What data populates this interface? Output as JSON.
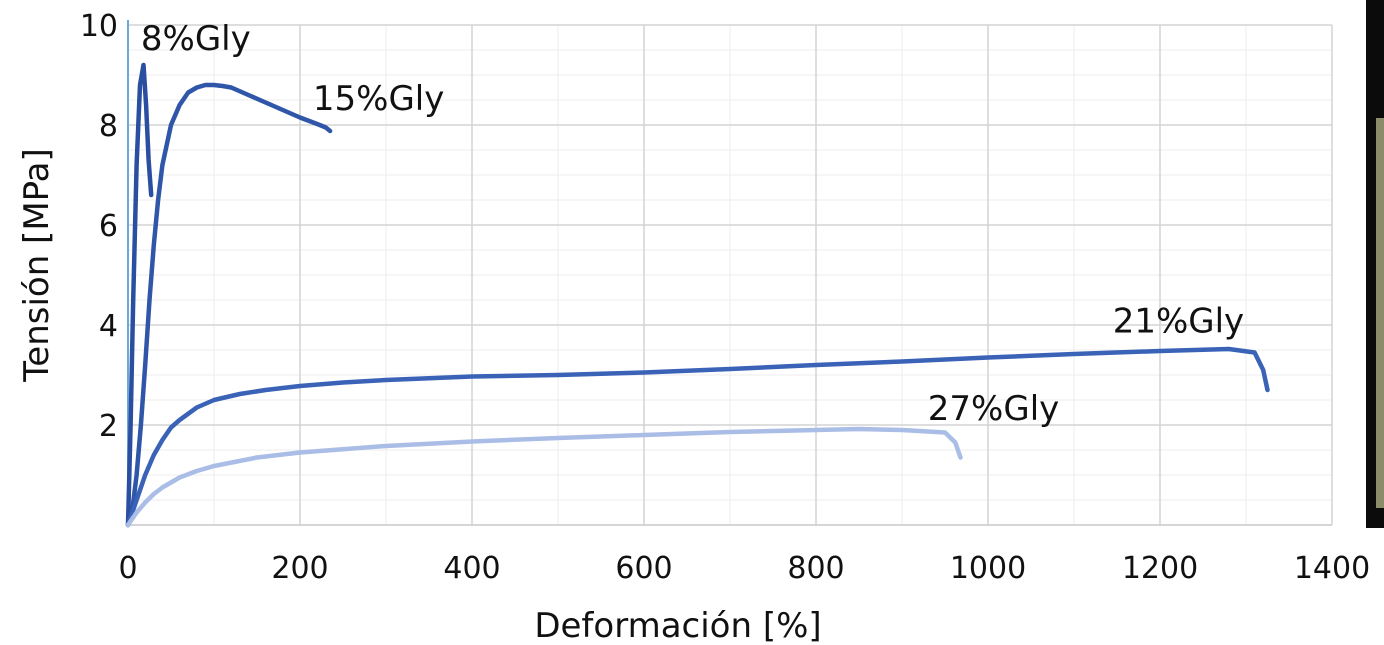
{
  "chart_data": {
    "type": "line",
    "xlabel": "Deformación [%]",
    "ylabel": "Tensión [MPa]",
    "xlim": [
      0,
      1400
    ],
    "ylim": [
      0,
      10
    ],
    "xticks": [
      0,
      200,
      400,
      600,
      800,
      1000,
      1200,
      1400
    ],
    "yticks": [
      2,
      4,
      6,
      8,
      10
    ],
    "grid": "major and minor",
    "series": [
      {
        "name": "8%Gly",
        "color": "#2a4fa0",
        "x": [
          0,
          3,
          6,
          10,
          14,
          18,
          21,
          24,
          27
        ],
        "y": [
          0,
          2.0,
          4.5,
          7.2,
          8.8,
          9.2,
          8.4,
          7.3,
          6.6
        ]
      },
      {
        "name": "15%Gly",
        "color": "#2f56a8",
        "x": [
          0,
          5,
          10,
          15,
          20,
          25,
          30,
          35,
          40,
          50,
          60,
          70,
          80,
          90,
          100,
          110,
          120,
          140,
          160,
          180,
          200,
          220,
          230,
          235
        ],
        "y": [
          0,
          0.3,
          1.0,
          2.0,
          3.2,
          4.5,
          5.6,
          6.5,
          7.2,
          8.0,
          8.4,
          8.65,
          8.75,
          8.8,
          8.8,
          8.78,
          8.75,
          8.6,
          8.45,
          8.3,
          8.15,
          8.02,
          7.95,
          7.88
        ]
      },
      {
        "name": "21%Gly",
        "color": "#3a63b8",
        "x": [
          0,
          10,
          20,
          30,
          40,
          50,
          60,
          80,
          100,
          130,
          160,
          200,
          250,
          300,
          400,
          500,
          600,
          700,
          800,
          900,
          1000,
          1100,
          1200,
          1280,
          1310,
          1320,
          1325
        ],
        "y": [
          0,
          0.5,
          1.0,
          1.4,
          1.7,
          1.95,
          2.1,
          2.35,
          2.5,
          2.62,
          2.7,
          2.78,
          2.85,
          2.9,
          2.97,
          3.0,
          3.05,
          3.12,
          3.2,
          3.27,
          3.35,
          3.42,
          3.48,
          3.52,
          3.45,
          3.1,
          2.7
        ]
      },
      {
        "name": "27%Gly",
        "color": "#a9bde6",
        "x": [
          0,
          10,
          20,
          30,
          40,
          60,
          80,
          100,
          150,
          200,
          300,
          400,
          500,
          600,
          700,
          800,
          850,
          900,
          950,
          962,
          968
        ],
        "y": [
          0,
          0.25,
          0.45,
          0.62,
          0.75,
          0.95,
          1.08,
          1.18,
          1.35,
          1.45,
          1.58,
          1.67,
          1.74,
          1.8,
          1.86,
          1.9,
          1.92,
          1.9,
          1.85,
          1.65,
          1.35
        ]
      }
    ],
    "annotations": [
      {
        "text": "8%Gly",
        "x": 15,
        "y": 9.5
      },
      {
        "text": "15%Gly",
        "x": 215,
        "y": 8.3
      },
      {
        "text": "21%Gly",
        "x": 1145,
        "y": 3.85
      },
      {
        "text": "27%Gly",
        "x": 930,
        "y": 2.1
      }
    ]
  }
}
